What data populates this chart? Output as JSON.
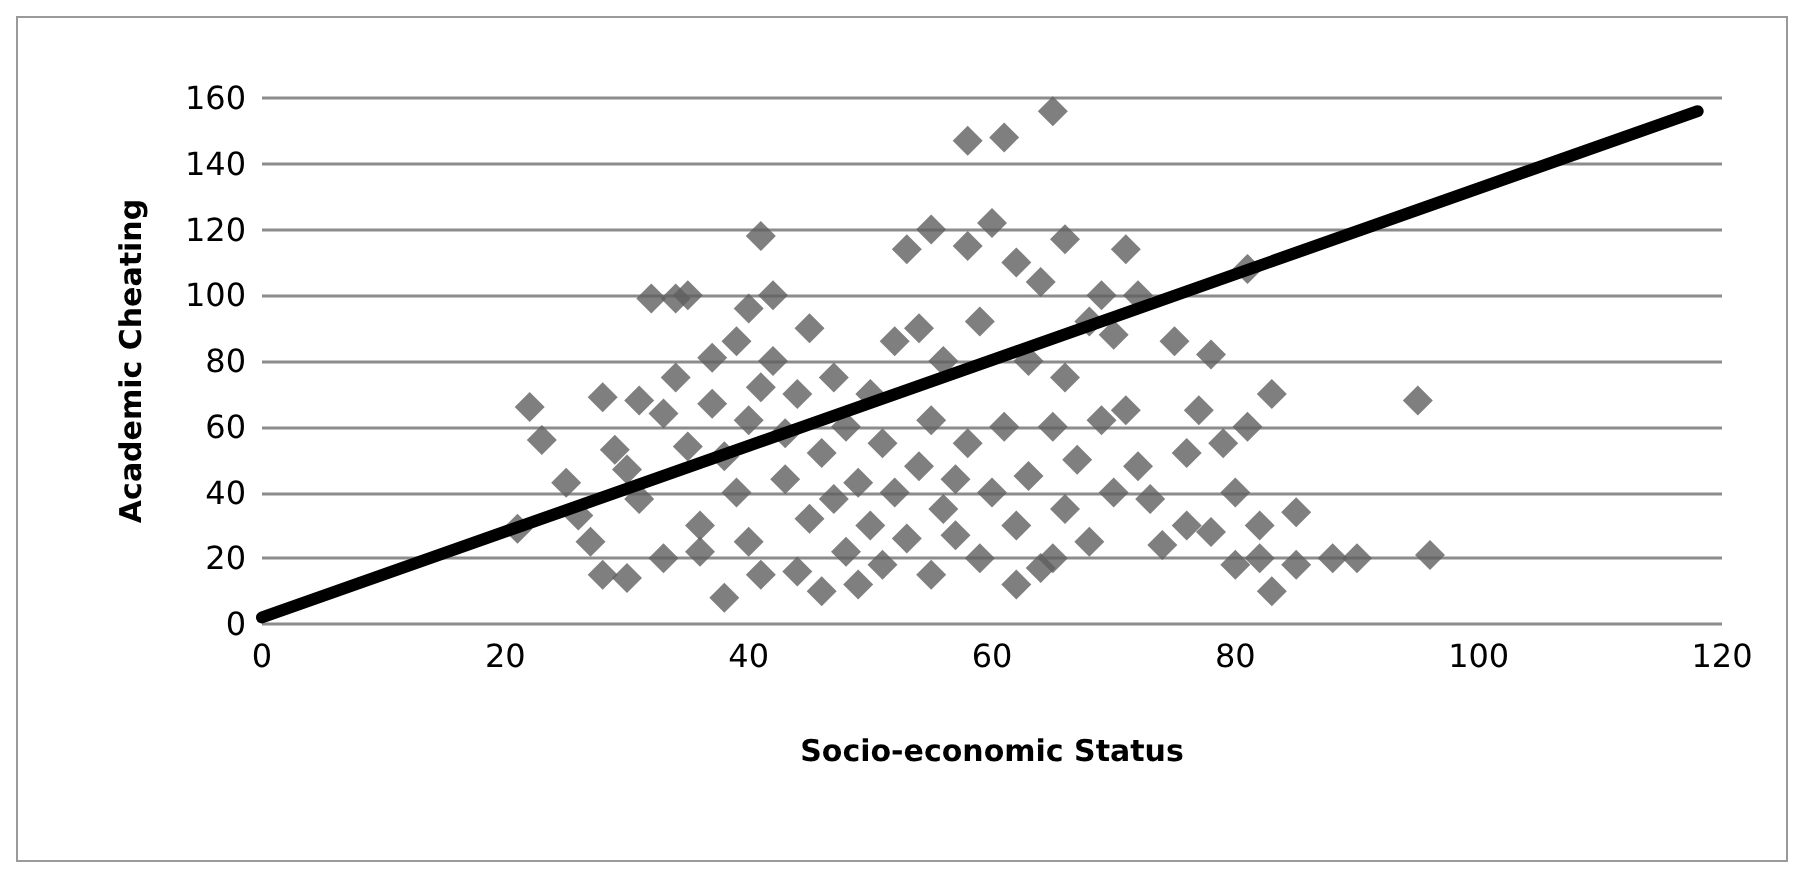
{
  "chart_data": {
    "type": "scatter",
    "xlabel": "Socio-economic Status",
    "ylabel": "Academic Cheating",
    "xlim": [
      0,
      120
    ],
    "xticks": [
      0,
      20,
      40,
      60,
      80,
      100,
      120
    ],
    "ylim": [
      0,
      160
    ],
    "yticks": [
      0,
      20,
      40,
      60,
      80,
      100,
      120,
      140,
      160
    ],
    "grid": "y",
    "marker": "diamond",
    "series": [
      {
        "color": "#5f5f5f",
        "x": [
          21,
          22,
          23,
          25,
          26,
          27,
          28,
          28,
          29,
          30,
          30,
          31,
          31,
          32,
          33,
          33,
          34,
          34,
          35,
          35,
          36,
          36,
          37,
          37,
          38,
          38,
          39,
          39,
          40,
          40,
          40,
          41,
          41,
          41,
          42,
          42,
          43,
          43,
          44,
          44,
          45,
          45,
          46,
          46,
          47,
          47,
          48,
          48,
          49,
          49,
          50,
          50,
          51,
          51,
          52,
          52,
          53,
          53,
          54,
          54,
          55,
          55,
          55,
          56,
          56,
          57,
          57,
          58,
          58,
          58,
          59,
          59,
          60,
          60,
          61,
          61,
          62,
          62,
          62,
          63,
          63,
          64,
          64,
          65,
          65,
          65,
          66,
          66,
          66,
          67,
          68,
          68,
          69,
          69,
          70,
          70,
          71,
          71,
          72,
          72,
          73,
          74,
          75,
          76,
          76,
          77,
          78,
          78,
          79,
          80,
          80,
          81,
          81,
          82,
          82,
          83,
          83,
          85,
          85,
          88,
          90,
          95,
          96
        ],
        "values": [
          29,
          66,
          56,
          43,
          33,
          25,
          15,
          69,
          53,
          14,
          47,
          68,
          38,
          99,
          64,
          20,
          99,
          75,
          100,
          54,
          22,
          30,
          67,
          81,
          8,
          51,
          86,
          40,
          96,
          62,
          25,
          118,
          72,
          15,
          80,
          100,
          44,
          58,
          16,
          70,
          32,
          90,
          10,
          52,
          75,
          38,
          22,
          60,
          12,
          43,
          30,
          70,
          55,
          18,
          86,
          40,
          114,
          26,
          90,
          48,
          15,
          62,
          120,
          35,
          80,
          44,
          27,
          115,
          55,
          147,
          20,
          92,
          122,
          40,
          148,
          60,
          30,
          110,
          12,
          80,
          45,
          104,
          17,
          156,
          60,
          20,
          117,
          35,
          75,
          50,
          92,
          25,
          100,
          62,
          88,
          40,
          114,
          65,
          100,
          48,
          38,
          24,
          86,
          30,
          52,
          65,
          82,
          28,
          55,
          18,
          40,
          108,
          60,
          20,
          30,
          10,
          70,
          18,
          34,
          20,
          20,
          68,
          21
        ]
      },
      {
        "type": "line",
        "color": "#000000",
        "x": [
          0,
          118
        ],
        "values": [
          2,
          156
        ],
        "marker": "none"
      }
    ]
  }
}
